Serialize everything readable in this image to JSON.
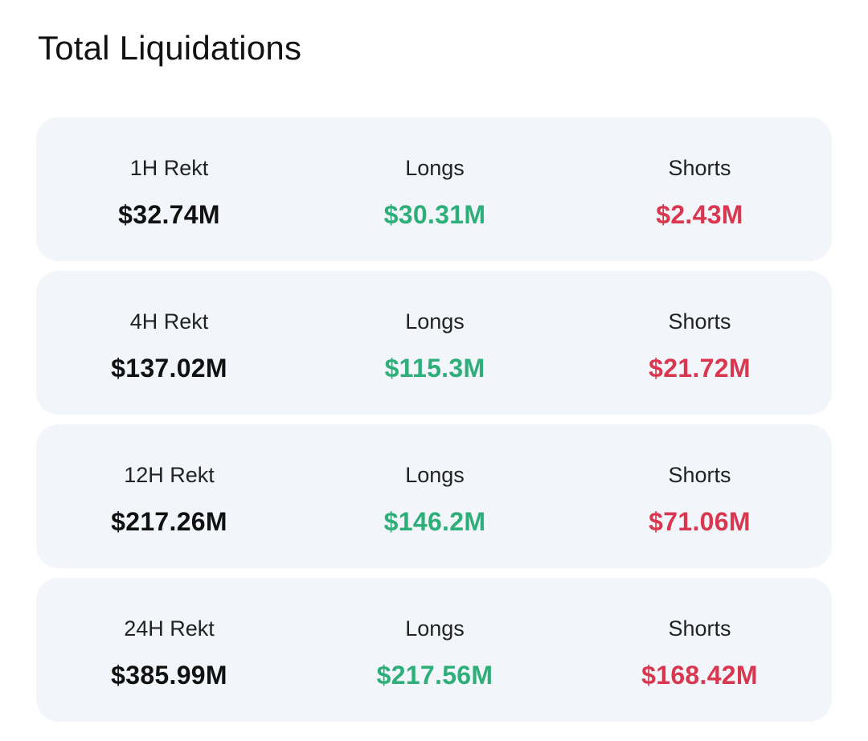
{
  "title": "Total Liquidations",
  "colors": {
    "longs": "#2eae79",
    "shorts": "#d9374f",
    "card_bg": "#f2f5f9"
  },
  "rows": [
    {
      "period_label": "1H Rekt",
      "total": "$32.74M",
      "longs_label": "Longs",
      "longs": "$30.31M",
      "shorts_label": "Shorts",
      "shorts": "$2.43M"
    },
    {
      "period_label": "4H Rekt",
      "total": "$137.02M",
      "longs_label": "Longs",
      "longs": "$115.3M",
      "shorts_label": "Shorts",
      "shorts": "$21.72M"
    },
    {
      "period_label": "12H Rekt",
      "total": "$217.26M",
      "longs_label": "Longs",
      "longs": "$146.2M",
      "shorts_label": "Shorts",
      "shorts": "$71.06M"
    },
    {
      "period_label": "24H Rekt",
      "total": "$385.99M",
      "longs_label": "Longs",
      "longs": "$217.56M",
      "shorts_label": "Shorts",
      "shorts": "$168.42M"
    }
  ]
}
